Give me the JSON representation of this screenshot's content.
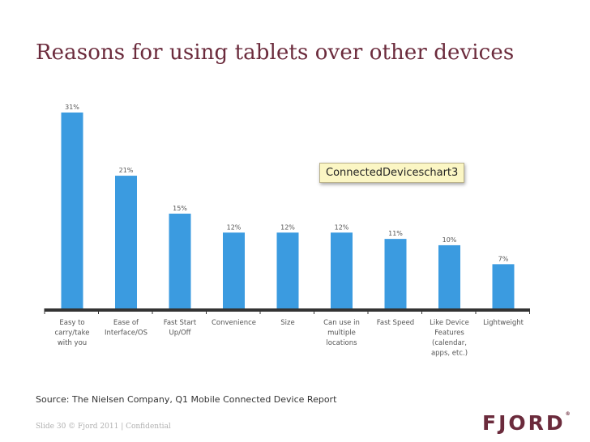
{
  "slide": {
    "title": "Reasons for using tablets over other devices",
    "source": "Source: The Nielsen Company, Q1 Mobile Connected Device Report",
    "footer": "Slide 30 © Fjord 2011 | Confidential",
    "logo": "FJORD",
    "logo_mark": "®",
    "tooltip": "ConnectedDeviceschart3"
  },
  "colors": {
    "title": "#6b2b3c",
    "bar": "#3b9be0",
    "axis": "#333333"
  },
  "chart_data": {
    "type": "bar",
    "categories": [
      [
        "Easy to",
        "carry/take",
        "with you"
      ],
      [
        "Ease of",
        "Interface/OS"
      ],
      [
        "Fast Start",
        "Up/Off"
      ],
      [
        "Convenience"
      ],
      [
        "Size"
      ],
      [
        "Can use in",
        "multiple",
        "locations"
      ],
      [
        "Fast Speed"
      ],
      [
        "Like Device",
        "Features",
        "(calendar,",
        "apps, etc.)"
      ],
      [
        "Lightweight"
      ]
    ],
    "values": [
      31,
      21,
      15,
      12,
      12,
      12,
      11,
      10,
      7
    ],
    "value_labels": [
      "31%",
      "21%",
      "15%",
      "12%",
      "12%",
      "12%",
      "11%",
      "10%",
      "7%"
    ],
    "unit": "%",
    "ylim": [
      0,
      31
    ],
    "grid": false,
    "legend": "none"
  }
}
